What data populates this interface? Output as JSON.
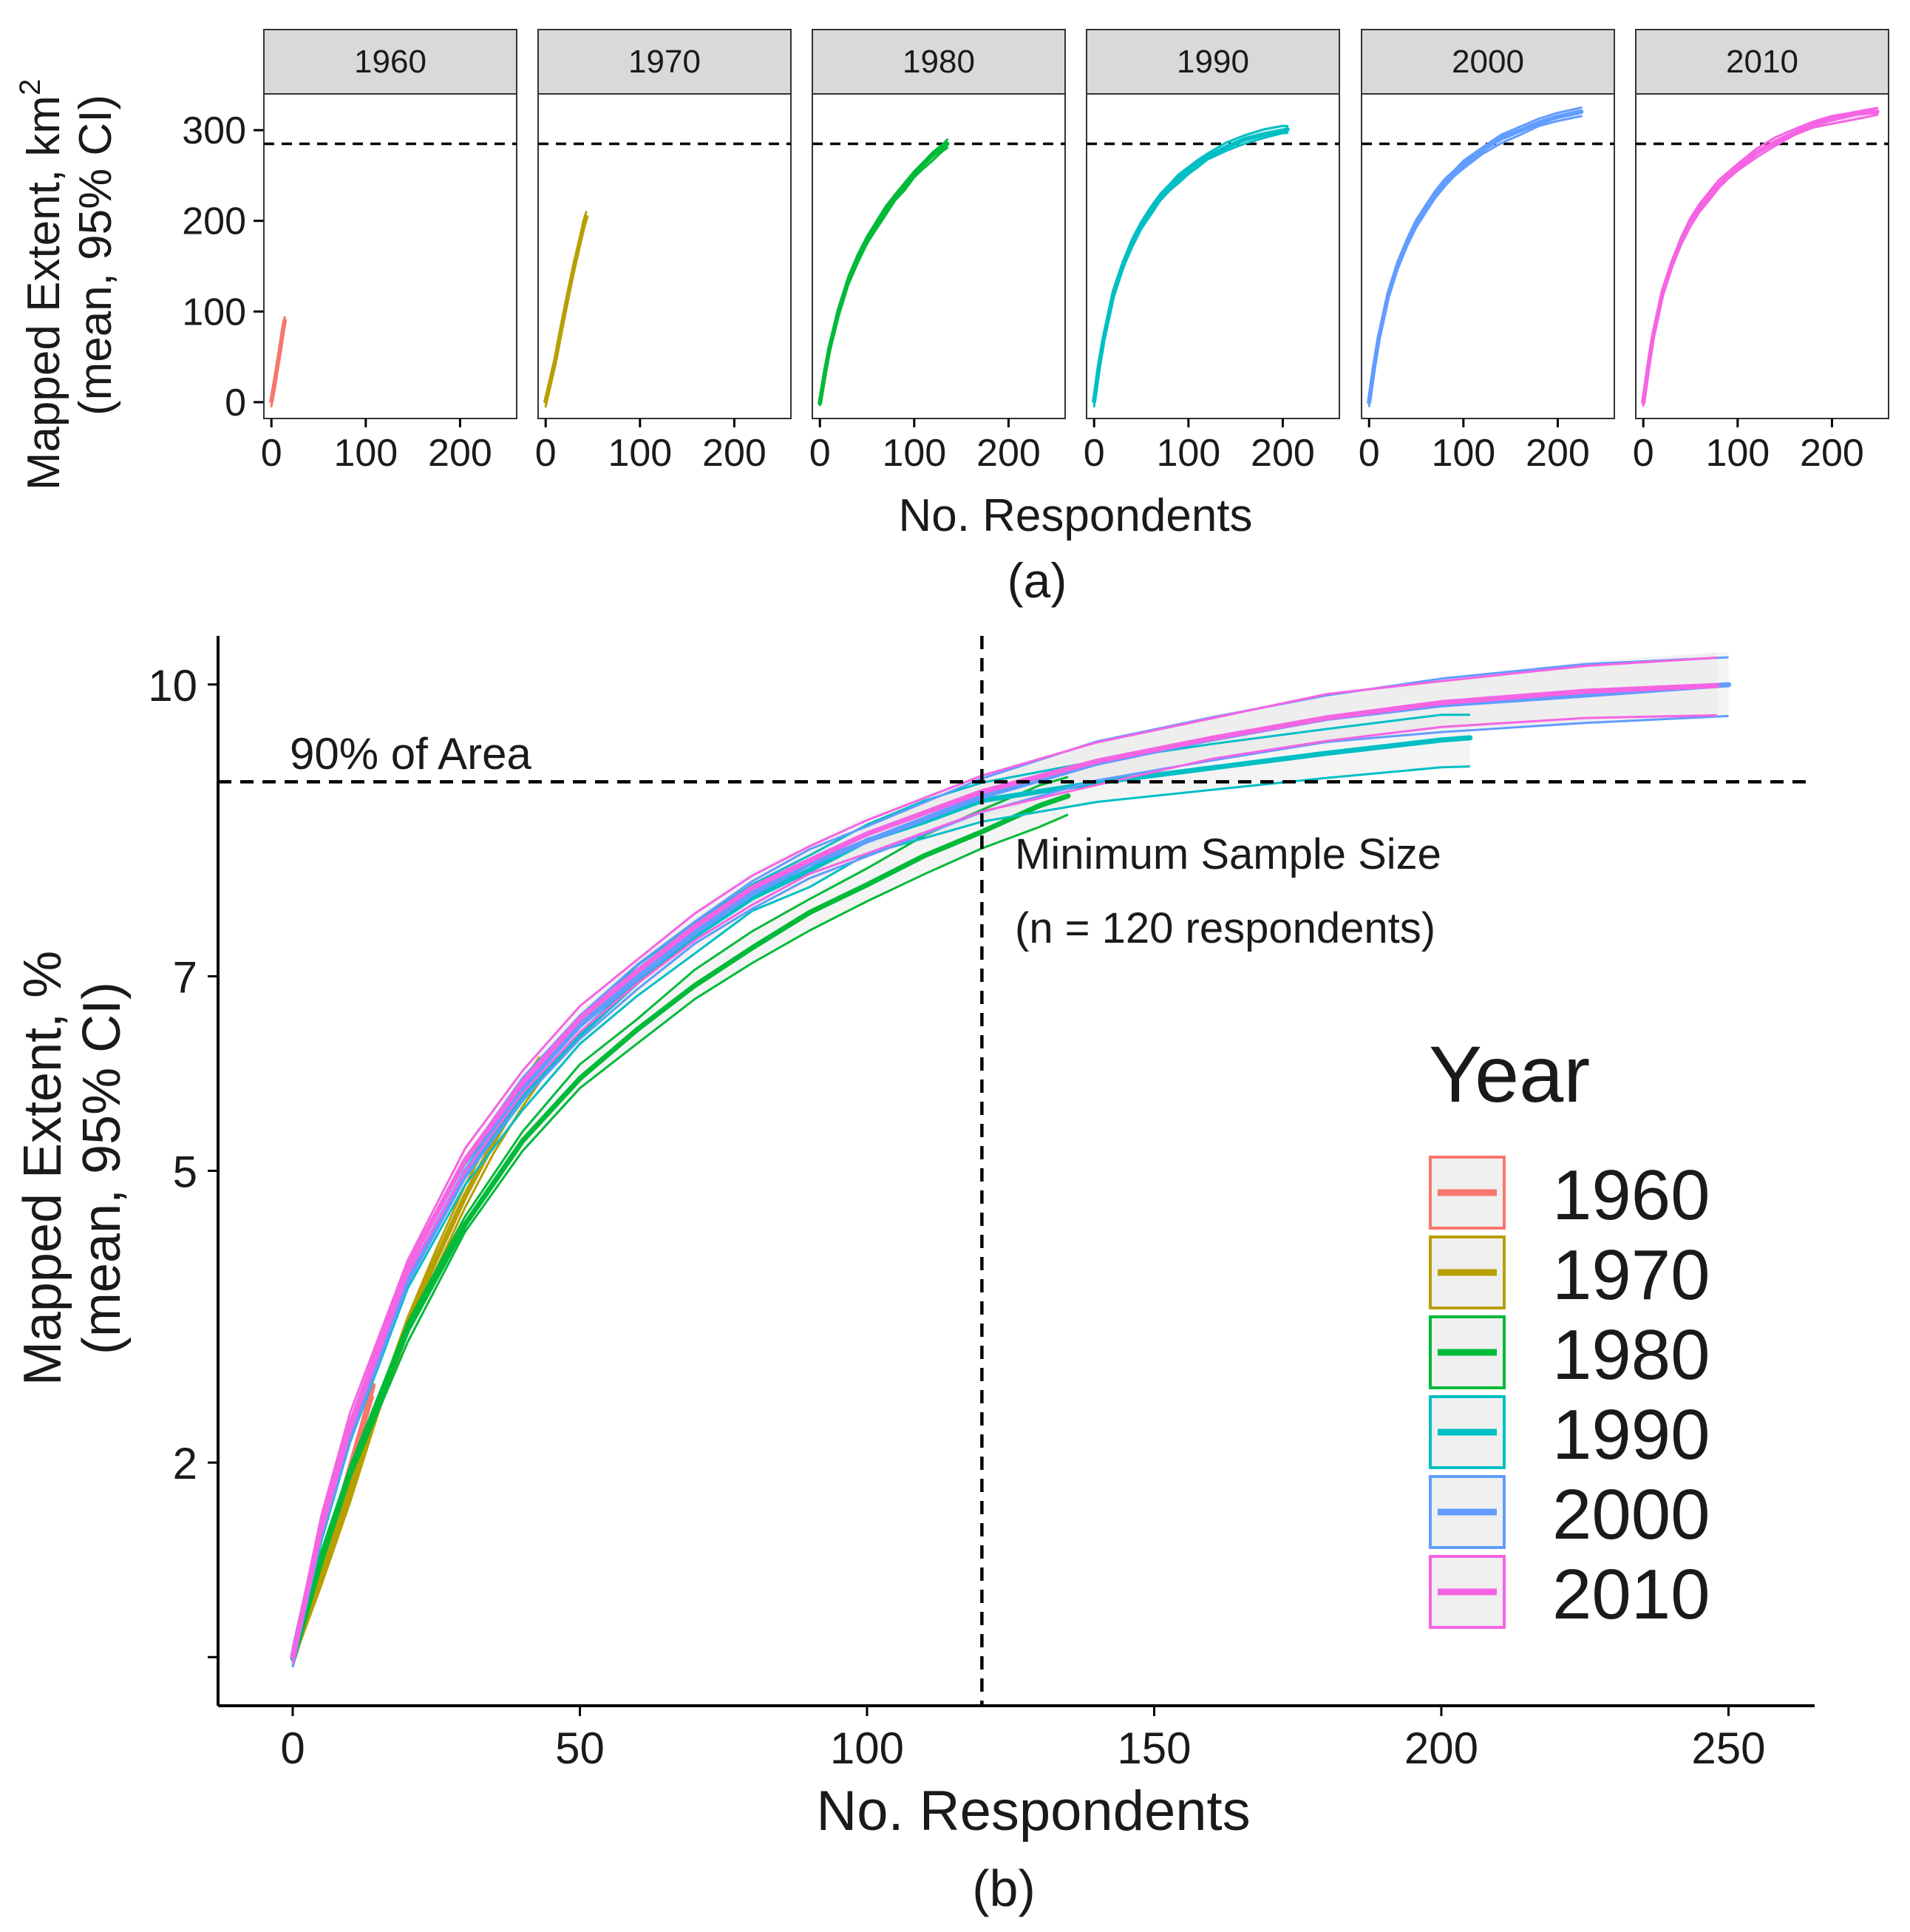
{
  "chart_data": [
    {
      "type": "line",
      "panel_label": "(a)",
      "facet_labels": [
        "1960",
        "1970",
        "1980",
        "1990",
        "2000",
        "2010"
      ],
      "ylabel_line1": "Mapped Extent,  km",
      "ylabel_sup": "2",
      "ylabel_line2": "(mean, 95% CI)",
      "xlabel": "No. Respondents",
      "yticks": [
        0,
        100,
        200,
        300
      ],
      "ytick_labels": [
        "0",
        "100",
        "200",
        "300"
      ],
      "xticks": [
        0,
        100,
        200
      ],
      "xtick_labels": [
        "0",
        "100",
        "200"
      ],
      "xlim": [
        -8,
        260
      ],
      "ylim": [
        -18,
        340
      ],
      "reference_hline": 285,
      "series": [
        {
          "name": "1960",
          "color": "#F8766D",
          "x": [
            0,
            3,
            6,
            9,
            12,
            14
          ],
          "y": [
            0,
            18,
            38,
            58,
            78,
            90
          ]
        },
        {
          "name": "1970",
          "color": "#B79F00",
          "x": [
            0,
            5,
            10,
            15,
            20,
            25,
            30,
            35,
            40,
            43
          ],
          "y": [
            0,
            22,
            46,
            72,
            98,
            125,
            150,
            172,
            195,
            205
          ]
        },
        {
          "name": "1980",
          "color": "#00BA38",
          "x": [
            0,
            5,
            10,
            20,
            30,
            40,
            50,
            60,
            70,
            80,
            90,
            100,
            110,
            120,
            130,
            135
          ],
          "y": [
            0,
            30,
            58,
            100,
            133,
            158,
            178,
            196,
            212,
            226,
            239,
            251,
            262,
            272,
            281,
            285
          ]
        },
        {
          "name": "1990",
          "color": "#00BFC4",
          "x": [
            0,
            5,
            10,
            20,
            30,
            40,
            50,
            60,
            70,
            80,
            90,
            100,
            110,
            120,
            140,
            160,
            180,
            200,
            205
          ],
          "y": [
            0,
            38,
            70,
            118,
            150,
            175,
            195,
            211,
            225,
            237,
            247,
            256,
            264,
            271,
            282,
            290,
            296,
            300,
            301
          ]
        },
        {
          "name": "2000",
          "color": "#619CFF",
          "x": [
            0,
            5,
            10,
            20,
            30,
            40,
            50,
            60,
            70,
            80,
            90,
            100,
            120,
            140,
            160,
            180,
            200,
            225
          ],
          "y": [
            0,
            38,
            70,
            117,
            150,
            175,
            196,
            213,
            228,
            241,
            252,
            261,
            277,
            290,
            300,
            308,
            314,
            320
          ]
        },
        {
          "name": "2010",
          "color": "#F564E3",
          "x": [
            0,
            5,
            10,
            20,
            30,
            40,
            50,
            60,
            70,
            80,
            90,
            100,
            120,
            140,
            160,
            180,
            200,
            225,
            248
          ],
          "y": [
            0,
            38,
            72,
            120,
            152,
            178,
            198,
            214,
            228,
            240,
            250,
            259,
            275,
            288,
            298,
            306,
            312,
            317,
            321
          ]
        }
      ]
    },
    {
      "type": "line",
      "panel_label": "(b)",
      "ylabel_line1": "Mapped Extent, %",
      "ylabel_line2": "(mean, 95% CI)",
      "xlabel": "No. Respondents",
      "yticks": [
        0,
        2,
        5,
        7,
        10
      ],
      "ytick_labels": [
        "",
        "2",
        "5",
        "7",
        "10"
      ],
      "xticks": [
        0,
        50,
        100,
        150,
        200,
        250
      ],
      "xtick_labels": [
        "0",
        "50",
        "100",
        "150",
        "200",
        "250"
      ],
      "xlim": [
        -13,
        265
      ],
      "ylim": [
        -0.5,
        10.5
      ],
      "reference_hline": 9,
      "reference_hline_label": "90% of Area",
      "reference_vline": 120,
      "reference_vline_label_line1": "Minimum Sample Size",
      "reference_vline_label_line2": "(n = 120 respondents)",
      "legend_title": "Year",
      "legend_position": "right",
      "series": [
        {
          "name": "1960",
          "color": "#F8766D",
          "x": [
            0,
            3,
            6,
            9,
            12,
            14
          ],
          "y": [
            0,
            0.55,
            1.1,
            1.7,
            2.35,
            2.8
          ]
        },
        {
          "name": "1970",
          "color": "#B79F00",
          "x": [
            0,
            5,
            10,
            15,
            20,
            25,
            30,
            35,
            40,
            43
          ],
          "y": [
            0,
            0.8,
            1.7,
            2.6,
            3.4,
            4.1,
            4.75,
            5.3,
            5.8,
            6.05
          ]
        },
        {
          "name": "1980",
          "color": "#00BA38",
          "x": [
            0,
            5,
            10,
            20,
            30,
            40,
            50,
            60,
            70,
            80,
            90,
            100,
            110,
            120,
            130,
            135
          ],
          "y": [
            0,
            1.0,
            1.9,
            3.35,
            4.45,
            5.3,
            5.95,
            6.45,
            6.9,
            7.3,
            7.65,
            7.95,
            8.25,
            8.5,
            8.75,
            8.85
          ]
        },
        {
          "name": "1990",
          "color": "#00BFC4",
          "x": [
            0,
            5,
            10,
            20,
            30,
            40,
            50,
            60,
            70,
            80,
            90,
            100,
            110,
            120,
            140,
            160,
            180,
            200,
            205
          ],
          "y": [
            0,
            1.3,
            2.3,
            3.9,
            4.95,
            5.75,
            6.4,
            6.95,
            7.4,
            7.8,
            8.1,
            8.4,
            8.6,
            8.8,
            9.0,
            9.15,
            9.3,
            9.42,
            9.45
          ]
        },
        {
          "name": "2000",
          "color": "#619CFF",
          "x": [
            0,
            5,
            10,
            20,
            30,
            40,
            50,
            60,
            70,
            80,
            90,
            100,
            120,
            140,
            160,
            180,
            200,
            225,
            250
          ],
          "y": [
            0,
            1.3,
            2.3,
            3.9,
            5.0,
            5.85,
            6.5,
            7.0,
            7.45,
            7.85,
            8.15,
            8.4,
            8.85,
            9.2,
            9.45,
            9.65,
            9.8,
            9.9,
            10.0
          ]
        },
        {
          "name": "2010",
          "color": "#F564E3",
          "x": [
            0,
            5,
            10,
            20,
            30,
            40,
            50,
            60,
            70,
            80,
            90,
            100,
            120,
            140,
            160,
            180,
            200,
            225,
            248
          ],
          "y": [
            0,
            1.35,
            2.4,
            4.0,
            5.1,
            5.9,
            6.55,
            7.05,
            7.5,
            7.9,
            8.2,
            8.45,
            8.9,
            9.2,
            9.45,
            9.65,
            9.8,
            9.92,
            10.0
          ]
        }
      ]
    }
  ]
}
